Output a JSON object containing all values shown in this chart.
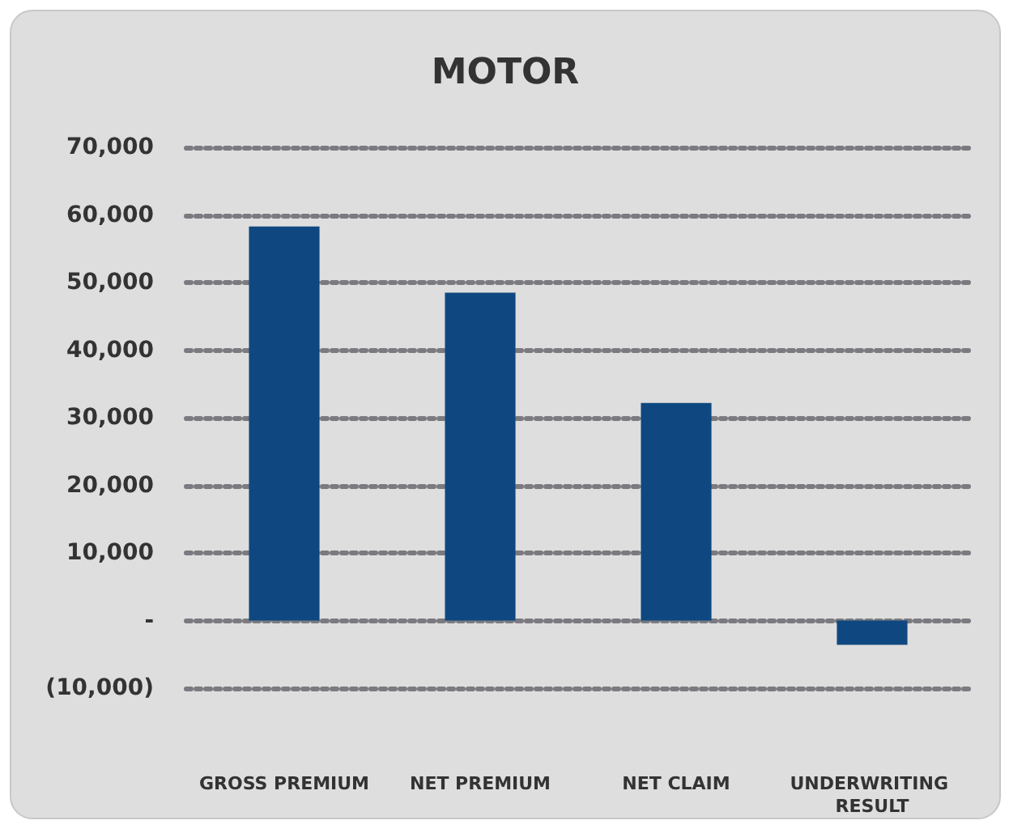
{
  "chart_data": {
    "type": "bar",
    "title": "MOTOR",
    "categories": [
      "GROSS PREMIUM",
      "NET PREMIUM",
      "NET CLAIM",
      "UNDERWRITING RESULT"
    ],
    "values": [
      58300,
      48500,
      32200,
      -3600
    ],
    "color": "#0f4880",
    "ylim": [
      -10000,
      70000
    ],
    "yticks": [
      {
        "value": -10000,
        "label": "(10,000)"
      },
      {
        "value": 0,
        "label": "-"
      },
      {
        "value": 10000,
        "label": "10,000"
      },
      {
        "value": 20000,
        "label": "20,000"
      },
      {
        "value": 30000,
        "label": "30,000"
      },
      {
        "value": 40000,
        "label": "40,000"
      },
      {
        "value": 50000,
        "label": "50,000"
      },
      {
        "value": 60000,
        "label": "60,000"
      },
      {
        "value": 70000,
        "label": "70,000"
      }
    ],
    "grid": "y",
    "line_style": "dotted"
  }
}
